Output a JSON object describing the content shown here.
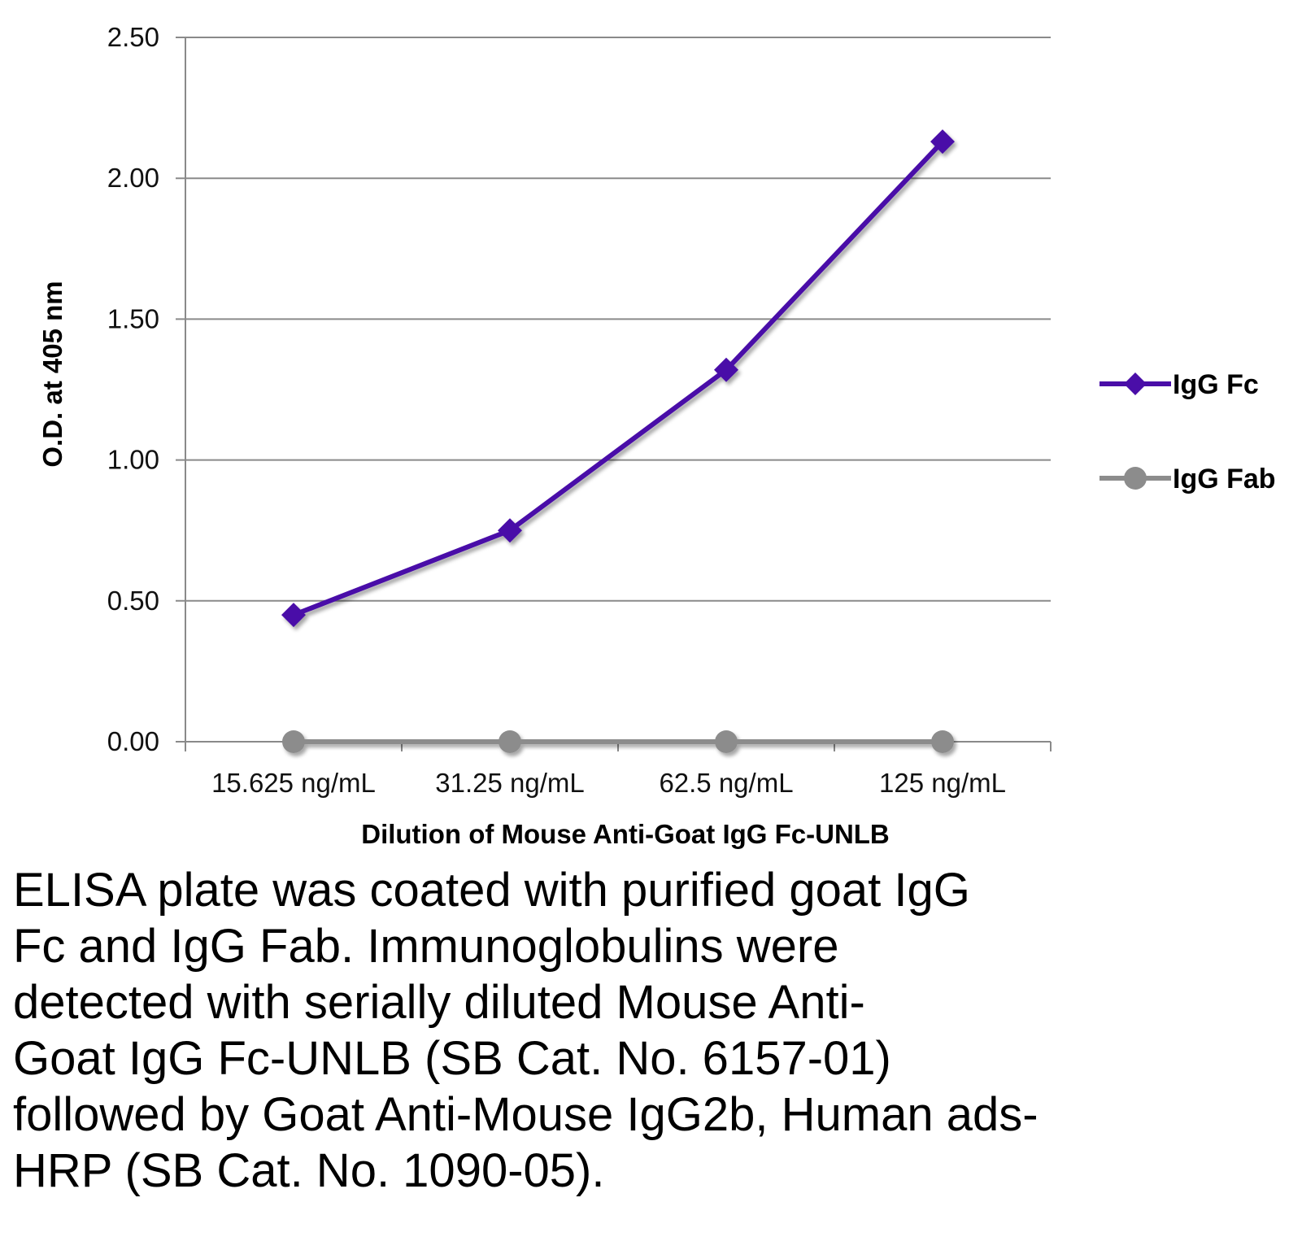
{
  "chart_data": {
    "type": "line",
    "title": "",
    "xlabel": "Dilution of Mouse Anti-Goat IgG Fc-UNLB",
    "ylabel": "O.D. at 405 nm",
    "categories": [
      "15.625 ng/mL",
      "31.25 ng/mL",
      "62.5 ng/mL",
      "125 ng/mL"
    ],
    "ylim": [
      0,
      2.5
    ],
    "yticks": [
      "0.00",
      "0.50",
      "1.00",
      "1.50",
      "2.00",
      "2.50"
    ],
    "grid": true,
    "legend_position": "right",
    "series": [
      {
        "name": "IgG Fc",
        "values": [
          0.45,
          0.75,
          1.32,
          2.13
        ],
        "color": "#4a0ea8",
        "marker": "diamond"
      },
      {
        "name": "IgG Fab",
        "values": [
          0.0,
          0.0,
          0.0,
          0.0
        ],
        "color": "#8c8c8c",
        "marker": "circle"
      }
    ]
  },
  "caption": {
    "lines": [
      "ELISA plate was coated with purified goat IgG",
      "Fc and IgG Fab.  Immunoglobulins were",
      "detected with serially diluted Mouse Anti-",
      "Goat IgG Fc-UNLB (SB Cat. No. 6157-01)",
      "followed by Goat Anti-Mouse IgG2b, Human ads-",
      "HRP (SB Cat. No. 1090-05)."
    ]
  }
}
